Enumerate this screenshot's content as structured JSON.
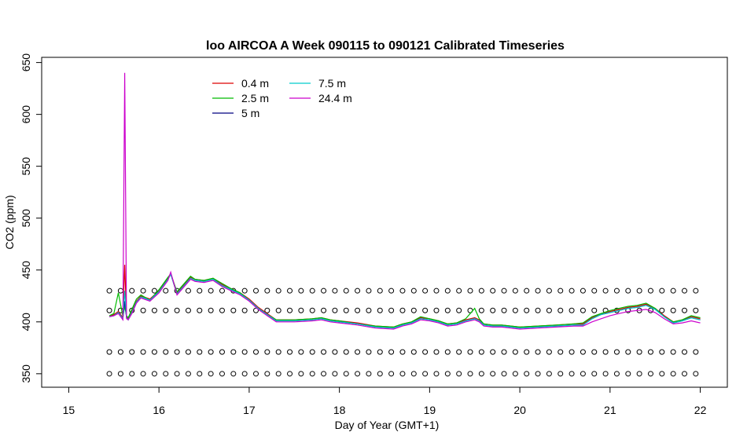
{
  "chart_data": {
    "type": "line",
    "title": "loo AIRCOA A  Week 090115 to 090121  Calibrated Timeseries",
    "xlabel": "Day of Year (GMT+1)",
    "ylabel": "CO2 (ppm)",
    "xlim": [
      14.7,
      22.3
    ],
    "ylim": [
      337,
      655
    ],
    "x_ticks": [
      "15",
      "16",
      "17",
      "18",
      "19",
      "20",
      "21",
      "22"
    ],
    "y_ticks": [
      "350",
      "400",
      "450",
      "500",
      "550",
      "600",
      "650"
    ],
    "grid": false,
    "legend_position": "top-left",
    "x_points": [
      15.45,
      15.5,
      15.55,
      15.6,
      15.62,
      15.64,
      15.66,
      15.7,
      15.75,
      15.8,
      15.9,
      16.0,
      16.1,
      16.13,
      16.2,
      16.3,
      16.35,
      16.4,
      16.5,
      16.6,
      16.7,
      16.8,
      16.9,
      17.0,
      17.1,
      17.2,
      17.3,
      17.5,
      17.7,
      17.8,
      17.9,
      18.0,
      18.2,
      18.4,
      18.6,
      18.7,
      18.8,
      18.9,
      19.0,
      19.1,
      19.2,
      19.3,
      19.4,
      19.5,
      19.55,
      19.6,
      19.7,
      19.8,
      19.9,
      20.0,
      20.2,
      20.4,
      20.6,
      20.7,
      20.8,
      20.9,
      21.0,
      21.1,
      21.2,
      21.3,
      21.4,
      21.5,
      21.6,
      21.7,
      21.8,
      21.9,
      22.0
    ],
    "series": [
      {
        "name": "0.4 m",
        "color": "#dd0000",
        "values": [
          405,
          407,
          410,
          404,
          455,
          405,
          403,
          410,
          420,
          425,
          422,
          430,
          442,
          447,
          428,
          438,
          443,
          441,
          440,
          442,
          436,
          432,
          428,
          422,
          414,
          408,
          402,
          402,
          403,
          404,
          402,
          401,
          399,
          396,
          395,
          398,
          400,
          404,
          403,
          401,
          398,
          399,
          402,
          404,
          402,
          398,
          397,
          397,
          396,
          395,
          396,
          397,
          398,
          398,
          404,
          408,
          410,
          412,
          414,
          415,
          417,
          413,
          406,
          400,
          402,
          405,
          403
        ]
      },
      {
        "name": "2.5 m",
        "color": "#00bb00",
        "values": [
          406,
          408,
          428,
          405,
          415,
          406,
          404,
          412,
          422,
          426,
          421,
          431,
          443,
          446,
          429,
          439,
          444,
          441,
          440,
          442,
          437,
          432,
          428,
          421,
          413,
          407,
          402,
          402,
          403,
          404,
          402,
          401,
          398,
          396,
          395,
          398,
          400,
          405,
          403,
          401,
          398,
          399,
          403,
          413,
          403,
          398,
          397,
          397,
          396,
          395,
          396,
          397,
          398,
          399,
          405,
          408,
          411,
          413,
          415,
          416,
          418,
          413,
          405,
          400,
          402,
          406,
          404
        ]
      },
      {
        "name": "5 m",
        "color": "#000080",
        "values": [
          405,
          406,
          409,
          403,
          420,
          404,
          402,
          409,
          419,
          424,
          421,
          429,
          441,
          446,
          427,
          437,
          442,
          440,
          439,
          441,
          435,
          431,
          427,
          421,
          413,
          407,
          401,
          401,
          402,
          403,
          401,
          400,
          398,
          395,
          394,
          397,
          399,
          403,
          402,
          400,
          397,
          398,
          401,
          403,
          401,
          397,
          396,
          396,
          395,
          394,
          395,
          396,
          397,
          397,
          403,
          407,
          409,
          411,
          413,
          414,
          416,
          412,
          405,
          399,
          401,
          404,
          402
        ]
      },
      {
        "name": "7.5 m",
        "color": "#00cccc",
        "values": [
          405,
          406,
          409,
          403,
          430,
          404,
          402,
          409,
          419,
          424,
          421,
          429,
          441,
          446,
          427,
          437,
          442,
          440,
          439,
          441,
          435,
          431,
          427,
          421,
          413,
          407,
          401,
          401,
          402,
          403,
          401,
          400,
          398,
          395,
          394,
          397,
          399,
          403,
          402,
          400,
          397,
          398,
          401,
          403,
          401,
          397,
          396,
          396,
          395,
          394,
          395,
          396,
          397,
          397,
          403,
          407,
          409,
          411,
          413,
          414,
          416,
          412,
          405,
          399,
          401,
          404,
          402
        ]
      },
      {
        "name": "24.4 m",
        "color": "#cc00cc",
        "values": [
          405,
          406,
          408,
          402,
          640,
          403,
          402,
          408,
          418,
          423,
          420,
          428,
          440,
          448,
          426,
          436,
          441,
          439,
          438,
          440,
          434,
          430,
          426,
          420,
          412,
          406,
          400,
          400,
          401,
          402,
          400,
          399,
          397,
          394,
          393,
          396,
          398,
          402,
          401,
          399,
          396,
          397,
          400,
          402,
          400,
          396,
          395,
          395,
          394,
          393,
          394,
          395,
          396,
          396,
          400,
          403,
          406,
          408,
          410,
          411,
          412,
          409,
          403,
          398,
          399,
          401,
          399
        ]
      }
    ],
    "markers": {
      "symbol": "circle",
      "levels": [
        430,
        411,
        371,
        350
      ],
      "x_start": 15.45,
      "x_end": 21.97,
      "step": 0.125
    }
  }
}
